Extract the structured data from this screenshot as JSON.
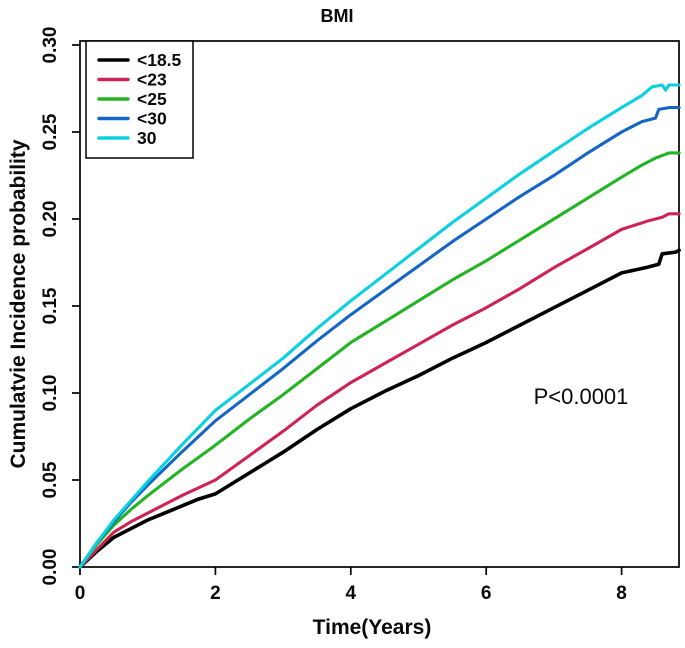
{
  "chart_data": {
    "type": "line",
    "title": "BMI",
    "xlabel": "Time(Years)",
    "ylabel": "Cumulatvie Incidence probability",
    "annotation": "P<0.0001",
    "xlim": [
      0,
      8.85
    ],
    "ylim": [
      0,
      0.3
    ],
    "x_ticks": [
      0,
      2,
      4,
      6,
      8
    ],
    "x_tick_labels": [
      "0",
      "2",
      "4",
      "6",
      "8"
    ],
    "y_ticks": [
      0,
      0.05,
      0.1,
      0.15,
      0.2,
      0.25,
      0.3
    ],
    "y_tick_labels": [
      "0.00",
      "0.05",
      "0.10",
      "0.15",
      "0.20",
      "0.25",
      "0.30"
    ],
    "grid": false,
    "legend_position": "top-left",
    "frame_color": "#000000",
    "series": [
      {
        "name": "<18.5",
        "color": "#000000",
        "points": [
          [
            0,
            0
          ],
          [
            0.25,
            0.009
          ],
          [
            0.5,
            0.017
          ],
          [
            0.75,
            0.022
          ],
          [
            1,
            0.027
          ],
          [
            1.25,
            0.031
          ],
          [
            1.5,
            0.035
          ],
          [
            1.75,
            0.039
          ],
          [
            2,
            0.042
          ],
          [
            2.25,
            0.048
          ],
          [
            2.5,
            0.054
          ],
          [
            2.75,
            0.06
          ],
          [
            3,
            0.066
          ],
          [
            3.5,
            0.079
          ],
          [
            4,
            0.091
          ],
          [
            4.5,
            0.101
          ],
          [
            5,
            0.11
          ],
          [
            5.5,
            0.12
          ],
          [
            6,
            0.129
          ],
          [
            6.5,
            0.139
          ],
          [
            7,
            0.149
          ],
          [
            7.5,
            0.159
          ],
          [
            8,
            0.169
          ],
          [
            8.35,
            0.172
          ],
          [
            8.55,
            0.174
          ],
          [
            8.6,
            0.18
          ],
          [
            8.8,
            0.181
          ],
          [
            8.85,
            0.182
          ]
        ]
      },
      {
        "name": "<23",
        "color": "#cf2355",
        "points": [
          [
            0,
            0
          ],
          [
            0.25,
            0.01
          ],
          [
            0.5,
            0.02
          ],
          [
            0.75,
            0.026
          ],
          [
            1,
            0.031
          ],
          [
            1.5,
            0.041
          ],
          [
            2,
            0.05
          ],
          [
            2.5,
            0.064
          ],
          [
            3,
            0.078
          ],
          [
            3.5,
            0.093
          ],
          [
            4,
            0.106
          ],
          [
            4.5,
            0.117
          ],
          [
            5,
            0.128
          ],
          [
            5.5,
            0.139
          ],
          [
            6,
            0.149
          ],
          [
            6.5,
            0.16
          ],
          [
            7,
            0.172
          ],
          [
            7.5,
            0.183
          ],
          [
            8,
            0.194
          ],
          [
            8.4,
            0.199
          ],
          [
            8.6,
            0.201
          ],
          [
            8.7,
            0.203
          ],
          [
            8.85,
            0.203
          ]
        ]
      },
      {
        "name": "<25",
        "color": "#23b423",
        "points": [
          [
            0,
            0
          ],
          [
            0.25,
            0.013
          ],
          [
            0.5,
            0.024
          ],
          [
            0.75,
            0.033
          ],
          [
            1,
            0.041
          ],
          [
            1.5,
            0.056
          ],
          [
            2,
            0.07
          ],
          [
            2.5,
            0.085
          ],
          [
            3,
            0.099
          ],
          [
            3.5,
            0.114
          ],
          [
            4,
            0.129
          ],
          [
            4.5,
            0.141
          ],
          [
            5,
            0.153
          ],
          [
            5.5,
            0.165
          ],
          [
            6,
            0.176
          ],
          [
            6.5,
            0.188
          ],
          [
            7,
            0.2
          ],
          [
            7.5,
            0.212
          ],
          [
            8,
            0.224
          ],
          [
            8.3,
            0.231
          ],
          [
            8.5,
            0.235
          ],
          [
            8.7,
            0.238
          ],
          [
            8.85,
            0.238
          ]
        ]
      },
      {
        "name": "<30",
        "color": "#1565c4",
        "points": [
          [
            0,
            0
          ],
          [
            0.25,
            0.014
          ],
          [
            0.5,
            0.026
          ],
          [
            0.75,
            0.037
          ],
          [
            1,
            0.047
          ],
          [
            1.5,
            0.066
          ],
          [
            2,
            0.084
          ],
          [
            2.5,
            0.099
          ],
          [
            3,
            0.114
          ],
          [
            3.5,
            0.13
          ],
          [
            4,
            0.145
          ],
          [
            4.5,
            0.159
          ],
          [
            5,
            0.173
          ],
          [
            5.5,
            0.187
          ],
          [
            6,
            0.2
          ],
          [
            6.5,
            0.213
          ],
          [
            7,
            0.225
          ],
          [
            7.5,
            0.238
          ],
          [
            8,
            0.25
          ],
          [
            8.3,
            0.256
          ],
          [
            8.5,
            0.258
          ],
          [
            8.55,
            0.263
          ],
          [
            8.7,
            0.264
          ],
          [
            8.85,
            0.264
          ]
        ]
      },
      {
        "name": "30",
        "color": "#0ccfe0",
        "points": [
          [
            0,
            0
          ],
          [
            0.25,
            0.014
          ],
          [
            0.5,
            0.027
          ],
          [
            0.75,
            0.038
          ],
          [
            1,
            0.049
          ],
          [
            1.5,
            0.07
          ],
          [
            2,
            0.09
          ],
          [
            2.5,
            0.105
          ],
          [
            3,
            0.12
          ],
          [
            3.5,
            0.137
          ],
          [
            4,
            0.153
          ],
          [
            4.5,
            0.168
          ],
          [
            5,
            0.183
          ],
          [
            5.5,
            0.198
          ],
          [
            6,
            0.212
          ],
          [
            6.5,
            0.226
          ],
          [
            7,
            0.239
          ],
          [
            7.5,
            0.252
          ],
          [
            8,
            0.264
          ],
          [
            8.3,
            0.271
          ],
          [
            8.45,
            0.276
          ],
          [
            8.6,
            0.277
          ],
          [
            8.65,
            0.274
          ],
          [
            8.7,
            0.277
          ],
          [
            8.85,
            0.277
          ]
        ]
      }
    ]
  }
}
